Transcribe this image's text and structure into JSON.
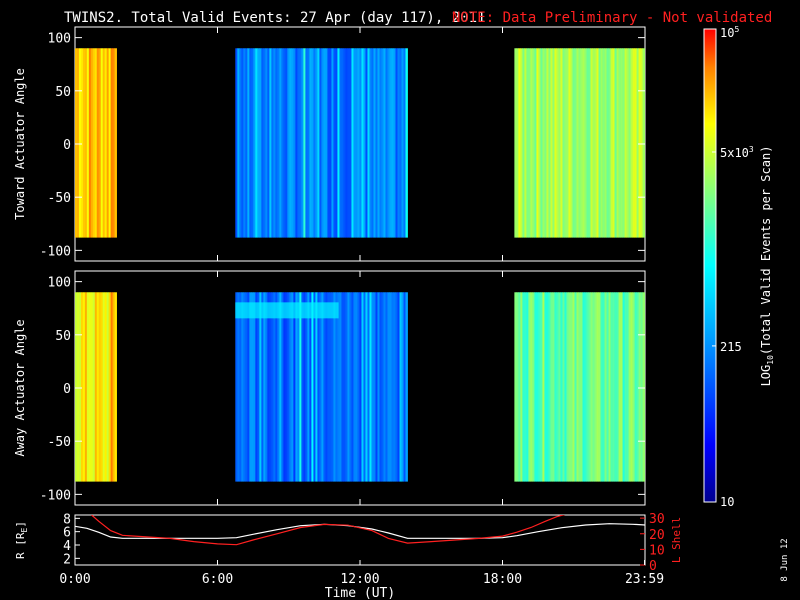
{
  "title": {
    "main": "TWINS2. Total Valid Events: 27 Apr (day 117), 2011",
    "note": "NOTE: Data Preliminary - Not validated",
    "note_color": "#ff2020"
  },
  "chart_data": [
    {
      "type": "heatmap",
      "ylabel": "Toward Actuator Angle",
      "ylim": [
        -110,
        110
      ],
      "yticks": [
        100,
        50,
        0,
        -50,
        -100
      ],
      "xlim_hours": [
        0,
        24
      ],
      "value_scale": "log",
      "segments": [
        {
          "start": "00:00",
          "end": "01:45",
          "angle_range": [
            -88,
            90
          ],
          "level": 0.86
        },
        {
          "start": "06:45",
          "end": "14:00",
          "angle_range": [
            -88,
            90
          ],
          "level": 0.3
        },
        {
          "start": "18:30",
          "end": "23:59",
          "angle_range": [
            -88,
            90
          ],
          "level": 0.7
        }
      ]
    },
    {
      "type": "heatmap",
      "ylabel": "Away Actuator Angle",
      "ylim": [
        -110,
        110
      ],
      "yticks": [
        100,
        50,
        0,
        -50,
        -100
      ],
      "xlim_hours": [
        0,
        24
      ],
      "value_scale": "log",
      "segments": [
        {
          "start": "00:00",
          "end": "01:45",
          "angle_range": [
            -88,
            90
          ],
          "level": 0.8
        },
        {
          "start": "06:45",
          "end": "14:00",
          "angle_range": [
            -88,
            90
          ],
          "level": 0.28
        },
        {
          "start": "18:30",
          "end": "23:59",
          "angle_range": [
            -88,
            90
          ],
          "level": 0.62
        }
      ]
    },
    {
      "type": "line",
      "ylabel_left": "R [R",
      "ylabel_left_sub": "E",
      "ylabel_left_close": "]",
      "ylabel_right": "L Shell",
      "right_color": "#ff2020",
      "xlabel": "Time (UT)",
      "xticks": [
        "0:00",
        "6:00",
        "12:00",
        "18:00",
        "23:59"
      ],
      "xtick_hours": [
        0,
        6,
        12,
        18,
        23.98
      ],
      "yticks_left": [
        8,
        6,
        4,
        2
      ],
      "yticks_right": [
        30,
        20,
        10,
        0
      ],
      "ylim_left": [
        1,
        8.5
      ],
      "ylim_right": [
        0,
        32
      ],
      "series": [
        {
          "axis": "left",
          "color": "#ffffff",
          "x_hours": [
            0,
            0.5,
            1,
            1.5,
            2,
            3,
            4,
            5,
            6,
            6.8,
            7.5,
            8.5,
            9.5,
            10.5,
            11.5,
            12.5,
            13.2,
            14,
            15,
            16,
            17,
            18,
            18.6,
            19.5,
            20.5,
            21.5,
            22.5,
            23.5,
            24
          ],
          "y": [
            6.8,
            6.5,
            5.9,
            5.2,
            5.0,
            5.0,
            5.0,
            5.0,
            5.0,
            5.1,
            5.6,
            6.3,
            6.9,
            7.1,
            6.9,
            6.4,
            5.8,
            5.0,
            5.0,
            5.0,
            5.0,
            5.1,
            5.4,
            6.0,
            6.6,
            7.0,
            7.2,
            7.1,
            7.0
          ]
        },
        {
          "axis": "right",
          "color": "#ff2020",
          "x_hours": [
            0.7,
            1.0,
            1.5,
            2.0,
            3,
            4,
            5,
            6,
            6.8,
            7.5,
            8.5,
            9.5,
            10.5,
            11.5,
            12.5,
            13.2,
            14,
            15,
            16,
            17,
            18,
            18.6,
            19.2,
            19.8,
            20.3,
            20.8
          ],
          "y": [
            32,
            28,
            22,
            19,
            18,
            17,
            15,
            13.5,
            13,
            16,
            20,
            24,
            26,
            25.5,
            22,
            17,
            14,
            15,
            16,
            17,
            18.5,
            21,
            24,
            28,
            31,
            33
          ]
        }
      ]
    }
  ],
  "colorbar": {
    "label_main": "LOG",
    "label_sub": "10",
    "label_rest": "(Total Valid Events per Scan)",
    "ticks": [
      {
        "label": "10",
        "sup": "5",
        "frac": 1.0
      },
      {
        "label": "5x10",
        "sup": "3",
        "frac": 0.74
      },
      {
        "label": "215",
        "sup": "",
        "frac": 0.33
      },
      {
        "label": "10",
        "sup": "",
        "frac": 0.0
      }
    ]
  },
  "footer": {
    "date": "8 Jun 12"
  }
}
